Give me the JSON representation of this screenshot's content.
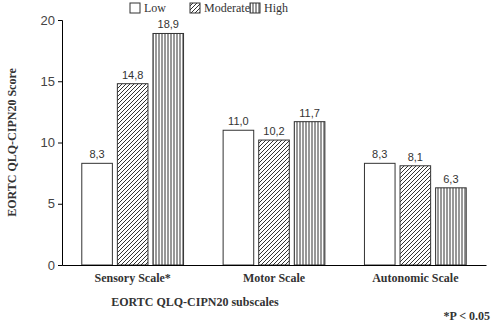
{
  "chart_data": {
    "type": "bar",
    "categories": [
      "Sensory Scale*",
      "Motor Scale",
      "Autonomic Scale"
    ],
    "series": [
      {
        "name": "Low",
        "color": "#ffffff",
        "values": [
          8.3,
          11.0,
          8.3
        ],
        "value_labels": [
          "8,3",
          "11,0",
          "8,3"
        ]
      },
      {
        "name": "Moderate",
        "color": "#ffffff",
        "values": [
          14.8,
          10.2,
          8.1
        ],
        "value_labels": [
          "14,8",
          "10,2",
          "8,1"
        ]
      },
      {
        "name": "High",
        "color": "#ffffff",
        "values": [
          18.9,
          11.7,
          6.3
        ],
        "value_labels": [
          "18,9",
          "11,7",
          "6,3"
        ]
      }
    ],
    "x_label": "EORTC QLQ-CIPN20 subscales",
    "y_label": "EORTC QLQ-CIPN20 Score",
    "annotation": "*P < 0.05",
    "ylim": [
      0,
      20
    ],
    "yticks": [
      0,
      5,
      10,
      15,
      20
    ],
    "data_labels": true,
    "legend": "top",
    "grid": false
  }
}
